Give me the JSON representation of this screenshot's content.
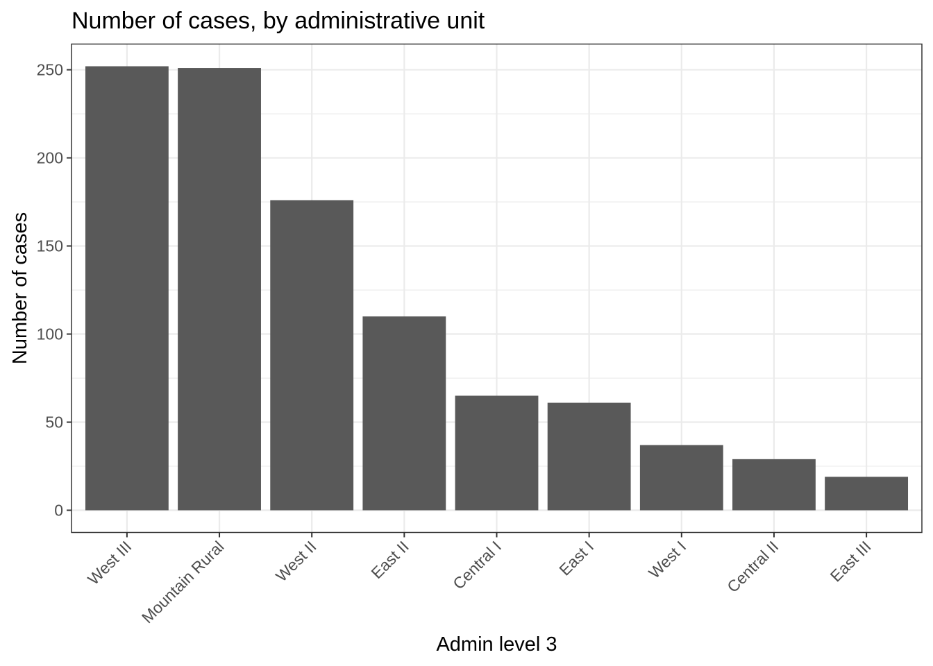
{
  "chart_data": {
    "type": "bar",
    "title": "Number of cases, by administrative unit",
    "xlabel": "Admin level 3",
    "ylabel": "Number of cases",
    "categories": [
      "West III",
      "Mountain Rural",
      "West II",
      "East II",
      "Central I",
      "East I",
      "West I",
      "Central II",
      "East III"
    ],
    "values": [
      252,
      251,
      176,
      110,
      65,
      61,
      37,
      29,
      19
    ],
    "yticks": [
      0,
      50,
      100,
      150,
      200,
      250
    ],
    "ylim": [
      -12.6,
      264.6
    ],
    "bar_color": "#595959",
    "grid": true,
    "legend": "none"
  }
}
